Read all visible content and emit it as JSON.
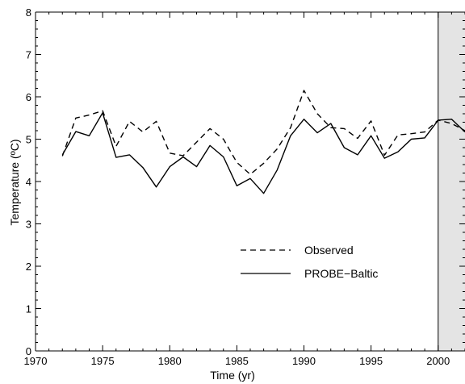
{
  "chart_data": {
    "type": "line",
    "title": "",
    "xlabel": "Time (yr)",
    "ylabel": "Temperature (ºC)",
    "xlim": [
      1970,
      2002
    ],
    "ylim": [
      0,
      8
    ],
    "xticks": [
      1970,
      1975,
      1980,
      1985,
      1990,
      1995,
      2000
    ],
    "yticks": [
      0,
      1,
      2,
      3,
      4,
      5,
      6,
      7,
      8
    ],
    "grid": false,
    "legend_position": "lower-center",
    "shaded_region": {
      "x_from": 2000,
      "x_to": 2002,
      "color": "#e4e4e4"
    },
    "series": [
      {
        "name": "Observed",
        "style": "dashed",
        "color": "#000000",
        "x": [
          1972,
          1973,
          1974,
          1975,
          1976,
          1977,
          1978,
          1979,
          1980,
          1981,
          1982,
          1983,
          1984,
          1985,
          1986,
          1987,
          1988,
          1989,
          1990,
          1991,
          1992,
          1993,
          1994,
          1995,
          1996,
          1997,
          1998,
          1999,
          2000,
          2001,
          2002
        ],
        "values": [
          4.6,
          5.5,
          5.57,
          5.67,
          4.83,
          5.42,
          5.17,
          5.42,
          4.67,
          4.61,
          4.93,
          5.25,
          5.0,
          4.45,
          4.17,
          4.43,
          4.77,
          5.27,
          6.15,
          5.6,
          5.27,
          5.25,
          5.02,
          5.43,
          4.62,
          5.1,
          5.13,
          5.17,
          5.45,
          5.37,
          5.2
        ]
      },
      {
        "name": "PROBE−Baltic",
        "style": "solid",
        "color": "#000000",
        "x": [
          1972,
          1973,
          1974,
          1975,
          1976,
          1977,
          1978,
          1979,
          1980,
          1981,
          1982,
          1983,
          1984,
          1985,
          1986,
          1987,
          1988,
          1989,
          1990,
          1991,
          1992,
          1993,
          1994,
          1995,
          1996,
          1997,
          1998,
          1999,
          2000,
          2001,
          2002
        ],
        "values": [
          4.63,
          5.18,
          5.08,
          5.62,
          4.57,
          4.63,
          4.33,
          3.87,
          4.35,
          4.58,
          4.35,
          4.85,
          4.58,
          3.9,
          4.07,
          3.72,
          4.27,
          5.08,
          5.47,
          5.15,
          5.37,
          4.8,
          4.63,
          5.08,
          4.55,
          4.7,
          5.0,
          5.03,
          5.45,
          5.47,
          5.17
        ]
      }
    ]
  }
}
